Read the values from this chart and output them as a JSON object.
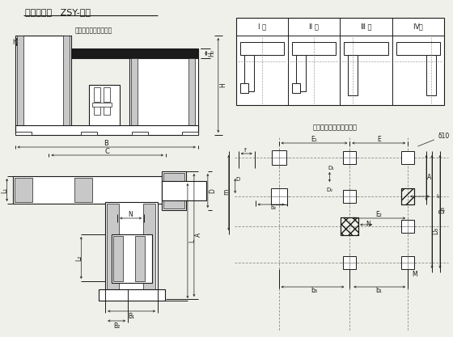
{
  "bg_color": "#f0f0ea",
  "line_color": "#1a1a1a",
  "title": "驱动装置架   ZSY-系列",
  "centerline_label": "电动机与减速器中心线",
  "subtitle": "子系零件及轴间距位置图"
}
